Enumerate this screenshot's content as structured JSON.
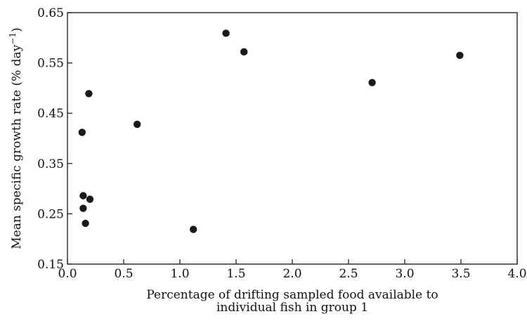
{
  "chart_data": {
    "type": "scatter",
    "title": "",
    "xlabel": [
      "Percentage of drifting sampled food available to",
      "individual fish in group 1"
    ],
    "ylabel": "Mean specific growth rate (% day",
    "ylabel_superscript": "−1",
    "ylabel_close": ")",
    "xlim": [
      0.0,
      4.0
    ],
    "ylim": [
      0.15,
      0.65
    ],
    "x_ticks": [
      "0.0",
      "0.5",
      "1.0",
      "1.5",
      "2.0",
      "2.5",
      "3.0",
      "3.5",
      "4.0"
    ],
    "y_ticks": [
      "0.15",
      "0.25",
      "0.35",
      "0.45",
      "0.55",
      "0.65"
    ],
    "grid": false,
    "points": [
      {
        "x": 0.13,
        "y": 0.412
      },
      {
        "x": 0.19,
        "y": 0.489
      },
      {
        "x": 0.14,
        "y": 0.286
      },
      {
        "x": 0.2,
        "y": 0.279
      },
      {
        "x": 0.14,
        "y": 0.261
      },
      {
        "x": 0.16,
        "y": 0.231
      },
      {
        "x": 0.62,
        "y": 0.428
      },
      {
        "x": 1.12,
        "y": 0.219
      },
      {
        "x": 1.41,
        "y": 0.609
      },
      {
        "x": 1.57,
        "y": 0.572
      },
      {
        "x": 2.71,
        "y": 0.511
      },
      {
        "x": 3.49,
        "y": 0.565
      }
    ]
  }
}
